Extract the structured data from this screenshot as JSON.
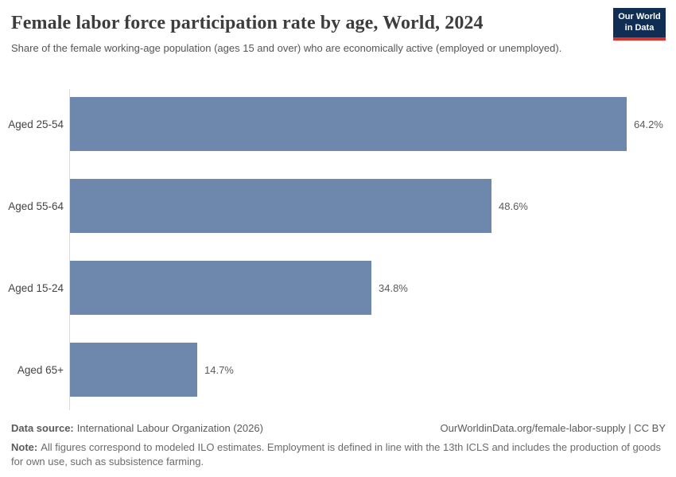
{
  "header": {
    "title": "Female labor force participation rate by age, World, 2024",
    "subtitle": "Share of the female working-age population (ages 15 and over) who are economically active (employed or unemployed)."
  },
  "logo": {
    "line1": "Our World",
    "line2": "in Data",
    "bg_color": "#102d54",
    "accent_color": "#d7352c"
  },
  "chart_data": {
    "type": "bar",
    "orientation": "horizontal",
    "title": "Female labor force participation rate by age, World, 2024",
    "categories": [
      "Aged 25-54",
      "Aged 55-64",
      "Aged 15-24",
      "Aged 65+"
    ],
    "values": [
      64.2,
      48.6,
      34.8,
      14.7
    ],
    "value_labels": [
      "64.2%",
      "48.6%",
      "34.8%",
      "14.7%"
    ],
    "unit": "%",
    "xlim": [
      0,
      64.2
    ],
    "grid": false,
    "legend": false,
    "bar_color": "#6e87ad",
    "axis_line_color": "#dcdcdc"
  },
  "footer": {
    "data_source_label": "Data source:",
    "data_source_value": "International Labour Organization (2026)",
    "attribution": "OurWorldinData.org/female-labor-supply | CC BY",
    "note_label": "Note:",
    "note_value": "All figures correspond to modeled ILO estimates. Employment is defined in line with the 13th ICLS and includes the production of goods for own use, such as subsistence farming."
  }
}
